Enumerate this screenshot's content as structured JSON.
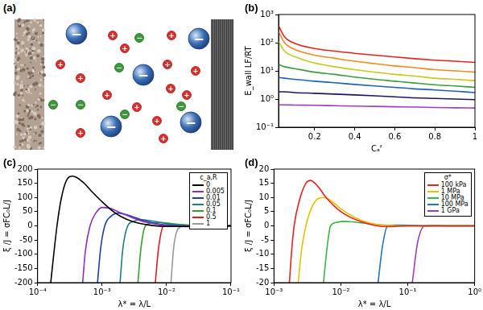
{
  "diagram": {
    "title": "(a)",
    "large_ions": [
      "−",
      "−",
      "−",
      "−",
      "−"
    ],
    "cations": [
      "+",
      "+",
      "+",
      "+",
      "+",
      "+",
      "+",
      "+",
      "+",
      "+",
      "+",
      "+",
      "+",
      "+"
    ],
    "anions": [
      "−",
      "−",
      "−",
      "−",
      "−",
      "−"
    ]
  },
  "chart_data": [
    {
      "type": "line",
      "title": "(b)",
      "x_label": "Cₐᶠ",
      "y_label": "E_wall LF/RT",
      "log": "y",
      "grid": false,
      "x": [
        0.02,
        0.05,
        0.1,
        0.2,
        0.3,
        0.4,
        0.5,
        0.6,
        0.7,
        0.8,
        0.9,
        1
      ],
      "xlim": [
        0.02,
        1
      ],
      "xticks": [
        0.2,
        0.4,
        0.6,
        0.8,
        1
      ],
      "ylim": [
        0.1,
        1000
      ],
      "yticks": [
        {
          "value": 0.1,
          "label": "10⁻¹"
        },
        {
          "value": 1,
          "label": "10⁰"
        },
        {
          "value": 10,
          "label": "10¹"
        },
        {
          "value": 100,
          "label": "10²"
        },
        {
          "value": 1000,
          "label": "10³"
        }
      ],
      "series": [
        {
          "color": "#e8231e",
          "values": [
            400,
            160,
            95,
            62,
            50,
            42,
            36,
            31,
            27,
            24,
            22,
            20
          ]
        },
        {
          "color": "#f28a1c",
          "values": [
            250,
            100,
            58,
            36,
            28,
            22,
            18,
            15,
            13,
            11,
            10,
            9
          ]
        },
        {
          "color": "#c8c81e",
          "values": [
            110,
            50,
            32,
            19,
            14,
            11,
            9,
            7.5,
            6.5,
            5.5,
            5,
            4.5
          ]
        },
        {
          "color": "#3a9e3a",
          "values": [
            17,
            14,
            12,
            9,
            7.5,
            6,
            5,
            4.3,
            3.7,
            3.2,
            2.9,
            2.6
          ]
        },
        {
          "color": "#1f5fbf",
          "values": [
            5.8,
            5.5,
            5,
            4.3,
            3.8,
            3.3,
            2.9,
            2.6,
            2.3,
            2.1,
            1.9,
            1.7
          ]
        },
        {
          "color": "#1a1a5e",
          "values": [
            1.8,
            1.8,
            1.7,
            1.6,
            1.5,
            1.4,
            1.3,
            1.2,
            1.1,
            1.05,
            1,
            0.95
          ]
        },
        {
          "color": "#9a3fbf",
          "values": [
            0.62,
            0.62,
            0.61,
            0.6,
            0.58,
            0.56,
            0.55,
            0.53,
            0.52,
            0.5,
            0.49,
            0.48
          ]
        }
      ]
    },
    {
      "type": "line",
      "title": "(c)",
      "x_label": "λ* = λ/L",
      "y_label": "ξ /J = σFC₀L/J",
      "log": "x",
      "grid": false,
      "legend": "upper right",
      "legend_title": "c_a,R",
      "xlim": [
        0.0001,
        0.1
      ],
      "xticks": [
        {
          "value": 0.0001,
          "label": "10⁻⁴"
        },
        {
          "value": 0.001,
          "label": "10⁻³"
        },
        {
          "value": 0.01,
          "label": "10⁻²"
        },
        {
          "value": 0.1,
          "label": "10⁻¹"
        }
      ],
      "ylim": [
        -200,
        200
      ],
      "yticks": [
        -200,
        -150,
        -100,
        -50,
        0,
        50,
        100,
        150,
        200
      ],
      "series": [
        {
          "name": "0",
          "color": "#000000",
          "x": [
            0.00016,
            0.00018,
            0.0002,
            0.00023,
            0.00028,
            0.00035,
            0.0005,
            0.0007,
            0.001,
            0.0015,
            0.002,
            0.003,
            0.005,
            0.01,
            0.02,
            0.05,
            0.1
          ],
          "values": [
            -200,
            -90,
            0,
            90,
            160,
            175,
            155,
            120,
            85,
            50,
            32,
            15,
            4,
            -2,
            -2,
            -1,
            0
          ]
        },
        {
          "name": "0.005",
          "color": "#8e2fbf",
          "x": [
            0.0005,
            0.00055,
            0.00065,
            0.0008,
            0.001,
            0.0013,
            0.002,
            0.003,
            0.005,
            0.01,
            0.02,
            0.05,
            0.1
          ],
          "values": [
            -200,
            -90,
            0,
            45,
            65,
            62,
            45,
            28,
            12,
            1,
            -3,
            -1,
            0
          ]
        },
        {
          "name": "0.01",
          "color": "#1f3fa8",
          "x": [
            0.00085,
            0.00095,
            0.0011,
            0.0014,
            0.0018,
            0.0025,
            0.004,
            0.007,
            0.015,
            0.03,
            0.1
          ],
          "values": [
            -200,
            -80,
            0,
            35,
            45,
            38,
            22,
            8,
            0,
            -2,
            0
          ]
        },
        {
          "name": "0.05",
          "color": "#1a8080",
          "x": [
            0.0019,
            0.0021,
            0.0025,
            0.003,
            0.004,
            0.006,
            0.01,
            0.02,
            0.05,
            0.1
          ],
          "values": [
            -200,
            -80,
            0,
            15,
            22,
            17,
            8,
            1,
            -1,
            0
          ]
        },
        {
          "name": "0.1",
          "color": "#33a02c",
          "x": [
            0.0036,
            0.004,
            0.0047,
            0.006,
            0.008,
            0.012,
            0.02,
            0.05,
            0.1
          ],
          "values": [
            -200,
            -80,
            0,
            10,
            12,
            8,
            3,
            0,
            0
          ]
        },
        {
          "name": "0.5",
          "color": "#e31a1c",
          "x": [
            0.0067,
            0.0075,
            0.009,
            0.012,
            0.016,
            0.025,
            0.05,
            0.1
          ],
          "values": [
            -200,
            -80,
            0,
            4,
            4,
            2,
            0,
            0
          ]
        },
        {
          "name": "1",
          "color": "#999999",
          "x": [
            0.0117,
            0.013,
            0.016,
            0.02,
            0.03,
            0.05,
            0.1
          ],
          "values": [
            -200,
            -70,
            -5,
            0,
            1,
            0,
            0
          ]
        }
      ]
    },
    {
      "type": "line",
      "title": "(d)",
      "x_label": "λ* = λ/L",
      "y_label": "ξ /J = σFC₀L/J",
      "log": "x",
      "grid": false,
      "legend": "upper right",
      "legend_title": "σ*",
      "xlim": [
        0.001,
        1
      ],
      "xticks": [
        {
          "value": 0.001,
          "label": "10⁻³"
        },
        {
          "value": 0.01,
          "label": "10⁻²"
        },
        {
          "value": 0.1,
          "label": "10⁻¹"
        },
        {
          "value": 1,
          "label": "10⁰"
        }
      ],
      "ylim": [
        -20,
        20
      ],
      "yticks": [
        -20,
        -15,
        -10,
        -5,
        0,
        5,
        10,
        15,
        20
      ],
      "series": [
        {
          "name": "100 kPa",
          "color": "#e8231e",
          "x": [
            0.0017,
            0.00185,
            0.002,
            0.0024,
            0.003,
            0.0035,
            0.0045,
            0.006,
            0.01,
            0.02,
            0.05,
            0.1,
            1
          ],
          "values": [
            -20,
            -8,
            0,
            9,
            15,
            16,
            14,
            10,
            5,
            1.5,
            -0.3,
            0,
            0
          ]
        },
        {
          "name": "1 MPa",
          "color": "#e6c200",
          "x": [
            0.0023,
            0.0026,
            0.003,
            0.0036,
            0.0045,
            0.0055,
            0.007,
            0.01,
            0.02,
            0.04,
            0.1,
            1
          ],
          "values": [
            -20,
            -8,
            0,
            6,
            9.5,
            10,
            9,
            6,
            2,
            0.3,
            0,
            0
          ]
        },
        {
          "name": "10 MPa",
          "color": "#3cb44b",
          "x": [
            0.0055,
            0.0062,
            0.007,
            0.0085,
            0.011,
            0.015,
            0.025,
            0.05,
            0.1,
            1
          ],
          "values": [
            -20,
            -8,
            0,
            1.2,
            1.6,
            1.4,
            0.8,
            0.2,
            0,
            0
          ]
        },
        {
          "name": "100 MPa",
          "color": "#1f77b4",
          "x": [
            0.036,
            0.042,
            0.05,
            0.065,
            0.1,
            0.2,
            1
          ],
          "values": [
            -20,
            -7,
            0,
            0.3,
            0.2,
            0,
            0
          ]
        },
        {
          "name": "1 GPa",
          "color": "#9b3fb5",
          "x": [
            0.117,
            0.14,
            0.18,
            0.25,
            0.4,
            1
          ],
          "values": [
            -20,
            -6,
            0,
            0.1,
            0,
            0
          ]
        }
      ]
    }
  ]
}
